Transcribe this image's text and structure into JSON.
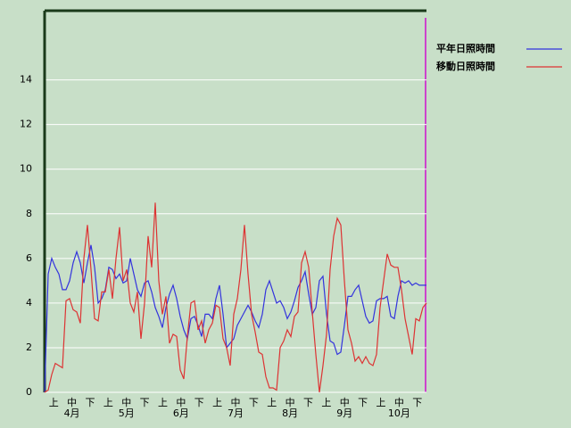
{
  "chart_data": {
    "type": "line",
    "dekads": [
      "上",
      "中",
      "下",
      "上",
      "中",
      "下",
      "上",
      "中",
      "下",
      "上",
      "中",
      "下",
      "上",
      "中",
      "下",
      "上",
      "中",
      "下",
      "上",
      "中",
      "下"
    ],
    "months": [
      "4月",
      "5月",
      "6月",
      "7月",
      "8月",
      "9月",
      "10月"
    ],
    "series": [
      {
        "name": "平年日照時間",
        "color": "#3333dd",
        "values": [
          0,
          5.3,
          6.0,
          5.6,
          5.3,
          4.6,
          4.6,
          5.0,
          5.8,
          6.3,
          5.8,
          4.9,
          5.8,
          6.6,
          5.6,
          4.0,
          4.2,
          4.6,
          5.6,
          5.5,
          5.1,
          5.3,
          4.9,
          5.0,
          6.0,
          5.3,
          4.6,
          4.3,
          4.9,
          5.0,
          4.5,
          3.8,
          3.4,
          2.9,
          3.8,
          4.4,
          4.8,
          4.2,
          3.4,
          2.8,
          2.4,
          3.3,
          3.4,
          3.0,
          2.5,
          3.5,
          3.5,
          3.3,
          4.2,
          4.8,
          3.5,
          2.0,
          2.2,
          2.4,
          3.0,
          3.3,
          3.6,
          3.9,
          3.6,
          3.2,
          2.9,
          3.5,
          4.6,
          5.0,
          4.5,
          4.0,
          4.1,
          3.8,
          3.3,
          3.6,
          4.1,
          4.7,
          5.0,
          5.4,
          4.4,
          3.5,
          3.8,
          5.0,
          5.2,
          3.5,
          2.3,
          2.2,
          1.7,
          1.8,
          3.0,
          4.3,
          4.3,
          4.6,
          4.8,
          4.1,
          3.4,
          3.1,
          3.2,
          4.1,
          4.2,
          4.2,
          4.3,
          3.4,
          3.3,
          4.3,
          5.0,
          4.9,
          5.0,
          4.8,
          4.9,
          4.8,
          4.8,
          4.8
        ]
      },
      {
        "name": "移動日照時間",
        "color": "#dd3333",
        "values": [
          0,
          0.1,
          0.8,
          1.3,
          1.2,
          1.1,
          4.1,
          4.2,
          3.7,
          3.6,
          3.1,
          6.0,
          7.5,
          5.5,
          3.3,
          3.2,
          4.5,
          4.5,
          5.5,
          4.2,
          6.0,
          7.4,
          5.0,
          5.5,
          4.0,
          3.6,
          4.5,
          2.4,
          4.0,
          7.0,
          5.6,
          8.5,
          5.0,
          3.5,
          4.3,
          2.2,
          2.6,
          2.5,
          1.0,
          0.6,
          2.5,
          4.0,
          4.1,
          2.8,
          3.2,
          2.2,
          2.8,
          3.1,
          3.9,
          3.8,
          2.4,
          2.0,
          1.2,
          3.5,
          4.2,
          5.5,
          7.5,
          5.3,
          3.5,
          2.7,
          1.8,
          1.7,
          0.7,
          0.2,
          0.2,
          0.1,
          2.0,
          2.3,
          2.8,
          2.5,
          3.4,
          3.6,
          5.8,
          6.3,
          5.6,
          3.6,
          1.7,
          0.0,
          1.2,
          2.6,
          5.5,
          7.0,
          7.8,
          7.5,
          5.0,
          2.8,
          2.2,
          1.4,
          1.6,
          1.3,
          1.6,
          1.3,
          1.2,
          1.7,
          3.8,
          5.0,
          6.2,
          5.7,
          5.6,
          5.6,
          4.6,
          3.3,
          2.5,
          1.7,
          3.3,
          3.2,
          3.8,
          4.0
        ]
      }
    ],
    "ylim": [
      0,
      17.1
    ],
    "yticks": [
      0,
      2,
      4,
      6,
      8,
      10,
      12,
      14
    ],
    "grid": true,
    "legend": "top-right"
  }
}
